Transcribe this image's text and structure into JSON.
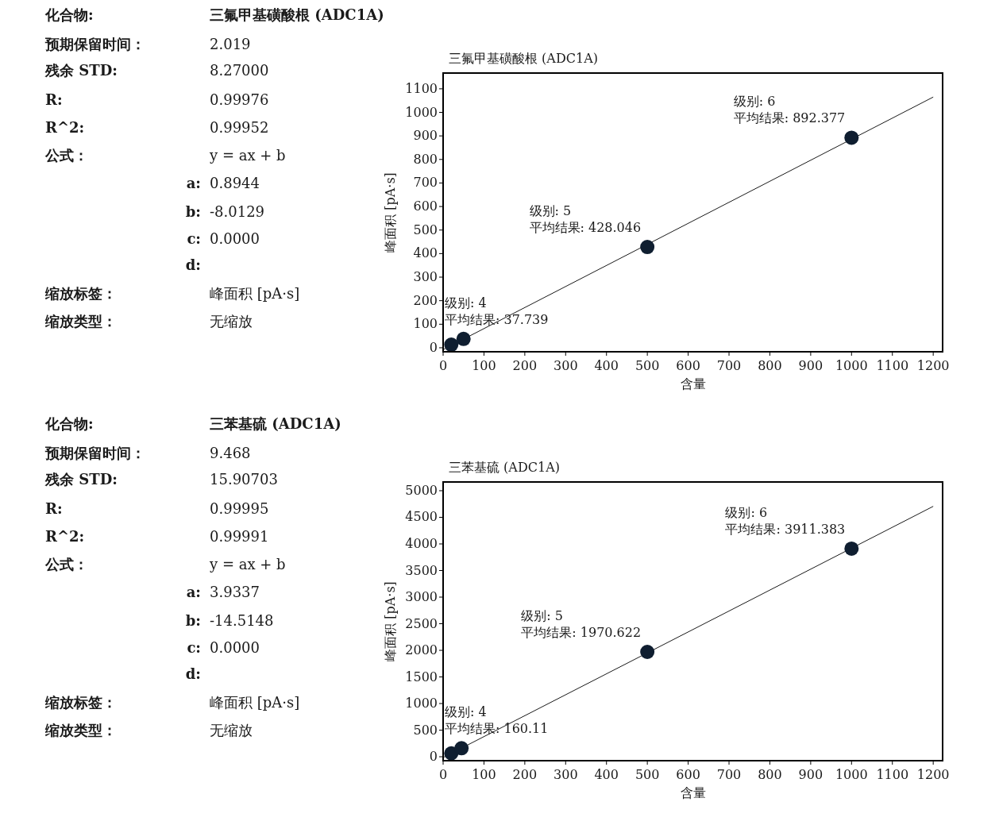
{
  "chart_data": [
    {
      "type": "other",
      "annotations": [
        "化合物:",
        "三氟甲基磺酸根 (ADC1A)",
        "预期保留时间：",
        "2.019",
        "残余 STD:",
        "8.27000",
        "R:",
        "0.99976",
        "R^2:",
        "0.99952",
        "公式：",
        "y = ax + b",
        "a:",
        "0.8944",
        "b:",
        "-8.0129",
        "c:",
        "0.0000",
        "d:",
        "缩放标签：",
        "峰面积 [pA·s]",
        "缩放类型：",
        "无缩放"
      ]
    },
    {
      "type": "scatter",
      "title": "三氟甲基磺酸根 (ADC1A)",
      "xlabel": "含量",
      "ylabel": "峰面积 [pA·s]",
      "xlim": [
        0,
        1223
      ],
      "ylim": [
        -17,
        1167
      ],
      "xticks": [
        0,
        100,
        200,
        300,
        400,
        500,
        600,
        700,
        800,
        900,
        1000,
        1100,
        1200
      ],
      "yticks": [
        0,
        100,
        200,
        300,
        400,
        500,
        600,
        700,
        800,
        900,
        1000,
        1100
      ],
      "series": [
        {
          "type": "line",
          "color": "#1a1a1a",
          "x": [
            0,
            1200
          ],
          "values": [
            -8,
            1065
          ]
        },
        {
          "type": "scatter",
          "color": "#0f1e30",
          "marker": "circle",
          "x": [
            20,
            50,
            500,
            1000
          ],
          "values": [
            13,
            37.739,
            428.046,
            892.377
          ]
        }
      ],
      "annotations": [
        "级别: 4",
        {
          "text": "平均结果: 37.739",
          "x": 50,
          "y": 37.739
        },
        "级别: 5",
        {
          "text": "平均结果: 428.046",
          "x": 500,
          "y": 428.046
        },
        "级别: 6",
        {
          "text": "平均结果: 892.377",
          "x": 1000,
          "y": 892.377
        }
      ]
    },
    {
      "type": "other",
      "annotations": [
        "化合物:",
        "三苯基硫 (ADC1A)",
        "预期保留时间：",
        "9.468",
        "残余 STD:",
        "15.90703",
        "R:",
        "0.99995",
        "R^2:",
        "0.99991",
        "公式：",
        "y = ax + b",
        "a:",
        "3.9337",
        "b:",
        "-14.5148",
        "c:",
        "0.0000",
        "d:",
        "缩放标签：",
        "峰面积 [pA·s]",
        "缩放类型：",
        "无缩放"
      ]
    },
    {
      "type": "scatter",
      "title": "三苯基硫 (ADC1A)",
      "xlabel": "含量",
      "ylabel": "峰面积 [pA·s]",
      "xlim": [
        0,
        1223
      ],
      "ylim": [
        -74,
        5164
      ],
      "xticks": [
        0,
        100,
        200,
        300,
        400,
        500,
        600,
        700,
        800,
        900,
        1000,
        1100,
        1200
      ],
      "yticks": [
        0,
        500,
        1000,
        1500,
        2000,
        2500,
        3000,
        3500,
        4000,
        4500,
        5000
      ],
      "series": [
        {
          "type": "line",
          "color": "#1a1a1a",
          "x": [
            0,
            1200
          ],
          "values": [
            -15,
            4706
          ]
        },
        {
          "type": "scatter",
          "color": "#0f1e30",
          "marker": "circle",
          "x": [
            20,
            45,
            500,
            1000
          ],
          "values": [
            64,
            160.11,
            1970.622,
            3911.383
          ]
        }
      ],
      "annotations": [
        "级别: 4",
        {
          "text": "平均结果: 160.11",
          "x": 45,
          "y": 160.11
        },
        "级别: 5",
        {
          "text": "平均结果: 1970.622",
          "x": 500,
          "y": 1970.622
        },
        "级别: 6",
        {
          "text": "平均结果: 3911.383",
          "x": 1000,
          "y": 3911.383
        }
      ]
    }
  ]
}
